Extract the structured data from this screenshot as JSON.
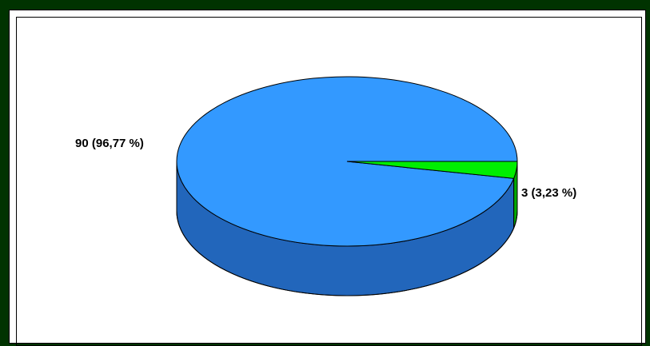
{
  "chart_data": {
    "type": "pie",
    "title": "",
    "style": "3d",
    "categories": [
      "",
      ""
    ],
    "values": [
      90,
      3
    ],
    "percents": [
      96.77,
      3.23
    ],
    "data_labels": [
      "90 (96,77 %)",
      "3 (3,23 %)"
    ],
    "colors": {
      "top": [
        "#3399ff",
        "#00ee00"
      ],
      "side": [
        "#2266bb",
        "#00aa00"
      ]
    },
    "legend": "none",
    "grid": false
  }
}
